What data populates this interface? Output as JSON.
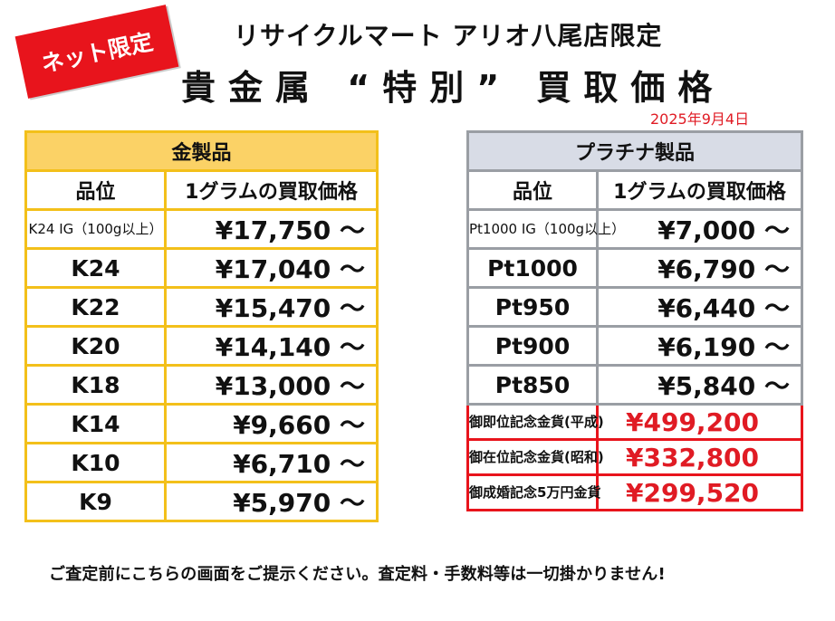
{
  "badge": "ネット限定",
  "store_title": "リサイクルマート アリオ八尾店限定",
  "headline": "貴金属 “特別” 買取価格",
  "date": "2025年9月4日",
  "gold": {
    "title": "金製品",
    "col_grade": "品位",
    "col_price": "1グラムの買取価格",
    "rows": [
      {
        "grade": "K24 IG（100g以上）",
        "price": "¥17,750 ～"
      },
      {
        "grade": "K24",
        "price": "¥17,040 ～"
      },
      {
        "grade": "K22",
        "price": "¥15,470 ～"
      },
      {
        "grade": "K20",
        "price": "¥14,140 ～"
      },
      {
        "grade": "K18",
        "price": "¥13,000 ～"
      },
      {
        "grade": "K14",
        "price": "¥9,660 ～"
      },
      {
        "grade": "K10",
        "price": "¥6,710 ～"
      },
      {
        "grade": "K9",
        "price": "¥5,970 ～"
      }
    ]
  },
  "platinum": {
    "title": "プラチナ製品",
    "col_grade": "品位",
    "col_price": "1グラムの買取価格",
    "rows": [
      {
        "grade": "Pt1000 IG（100g以上）",
        "price": "¥7,000 ～"
      },
      {
        "grade": "Pt1000",
        "price": "¥6,790 ～"
      },
      {
        "grade": "Pt950",
        "price": "¥6,440 ～"
      },
      {
        "grade": "Pt900",
        "price": "¥6,190 ～"
      },
      {
        "grade": "Pt850",
        "price": "¥5,840 ～"
      }
    ],
    "coins": [
      {
        "name": "御即位記念金貨(平成)",
        "price": "¥499,200"
      },
      {
        "name": "御在位記念金貨(昭和)",
        "price": "¥332,800"
      },
      {
        "name": "御成婚記念5万円金貨",
        "price": "¥299,520"
      }
    ]
  },
  "footer": "ご査定前にこちらの画面をご提示ください。査定料・手数料等は一切掛かりません!"
}
